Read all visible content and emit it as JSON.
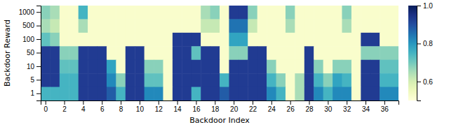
{
  "chart_data": {
    "type": "heatmap",
    "xlabel": "Backdoor Index",
    "ylabel": "Backdoor Reward",
    "categories": [
      "1000",
      "500",
      "100",
      "50",
      "10",
      "5",
      "1"
    ],
    "x": [
      0,
      1,
      2,
      3,
      4,
      5,
      6,
      7,
      8,
      9,
      10,
      11,
      12,
      13,
      14,
      15,
      16,
      17,
      18,
      19,
      20,
      21,
      22,
      23,
      24,
      25,
      26,
      27,
      28,
      29,
      30,
      31,
      32,
      33,
      34,
      35,
      36,
      37
    ],
    "xlim": [
      -0.5,
      37.5
    ],
    "xticks": [
      0,
      2,
      4,
      6,
      8,
      10,
      12,
      14,
      16,
      18,
      20,
      22,
      24,
      26,
      28,
      30,
      32,
      34,
      36
    ],
    "color": "YlGnBu",
    "color_range": [
      0.5,
      1.0
    ],
    "color_ticks": [
      0.6,
      0.8,
      {
        "value": 1.0,
        "label": "1.0"
      }
    ],
    "values": [
      [
        0.68,
        0.65,
        0.52,
        0.52,
        0.75,
        0.52,
        0.52,
        0.52,
        0.52,
        0.52,
        0.52,
        0.52,
        0.52,
        0.52,
        0.52,
        0.52,
        0.52,
        0.65,
        0.68,
        0.52,
        0.93,
        0.93,
        0.68,
        0.52,
        0.52,
        0.52,
        0.68,
        0.52,
        0.52,
        0.52,
        0.52,
        0.52,
        0.68,
        0.52,
        0.52,
        0.52,
        0.52,
        0.52
      ],
      [
        0.65,
        0.62,
        0.52,
        0.52,
        0.65,
        0.52,
        0.52,
        0.52,
        0.52,
        0.52,
        0.52,
        0.52,
        0.52,
        0.52,
        0.52,
        0.52,
        0.52,
        0.62,
        0.62,
        0.52,
        0.85,
        0.85,
        0.62,
        0.52,
        0.52,
        0.52,
        0.65,
        0.52,
        0.52,
        0.52,
        0.52,
        0.52,
        0.65,
        0.52,
        0.52,
        0.52,
        0.52,
        0.52
      ],
      [
        0.72,
        0.68,
        0.52,
        0.52,
        0.52,
        0.52,
        0.52,
        0.52,
        0.52,
        0.52,
        0.52,
        0.52,
        0.52,
        0.52,
        0.93,
        0.93,
        0.93,
        0.52,
        0.52,
        0.52,
        0.78,
        0.78,
        0.52,
        0.52,
        0.52,
        0.52,
        0.52,
        0.52,
        0.52,
        0.52,
        0.52,
        0.52,
        0.52,
        0.52,
        0.93,
        0.93,
        0.52,
        0.52
      ],
      [
        0.93,
        0.93,
        0.68,
        0.68,
        0.93,
        0.93,
        0.93,
        0.52,
        0.52,
        0.93,
        0.93,
        0.52,
        0.52,
        0.52,
        0.93,
        0.93,
        0.72,
        0.93,
        0.93,
        0.52,
        0.68,
        0.68,
        0.93,
        0.93,
        0.52,
        0.52,
        0.52,
        0.52,
        0.93,
        0.52,
        0.52,
        0.52,
        0.52,
        0.52,
        0.68,
        0.68,
        0.68,
        0.68
      ],
      [
        0.93,
        0.93,
        0.72,
        0.72,
        0.93,
        0.93,
        0.93,
        0.78,
        0.52,
        0.93,
        0.93,
        0.68,
        0.68,
        0.52,
        0.93,
        0.93,
        0.93,
        0.93,
        0.93,
        0.52,
        0.93,
        0.93,
        0.93,
        0.93,
        0.68,
        0.52,
        0.52,
        0.52,
        0.93,
        0.68,
        0.52,
        0.68,
        0.68,
        0.52,
        0.93,
        0.93,
        0.72,
        0.72
      ],
      [
        0.93,
        0.93,
        0.75,
        0.75,
        0.93,
        0.93,
        0.93,
        0.82,
        0.68,
        0.93,
        0.93,
        0.72,
        0.72,
        0.52,
        0.93,
        0.93,
        0.93,
        0.93,
        0.93,
        0.75,
        0.93,
        0.93,
        0.93,
        0.93,
        0.75,
        0.68,
        0.52,
        0.65,
        0.93,
        0.75,
        0.68,
        0.78,
        0.75,
        0.52,
        0.93,
        0.93,
        0.75,
        0.75
      ],
      [
        0.75,
        0.75,
        0.75,
        0.75,
        0.93,
        0.93,
        0.93,
        0.88,
        0.75,
        0.93,
        0.93,
        0.82,
        0.82,
        0.52,
        0.93,
        0.93,
        0.75,
        0.93,
        0.93,
        0.88,
        0.93,
        0.93,
        0.93,
        0.93,
        0.82,
        0.75,
        0.52,
        0.65,
        0.93,
        0.82,
        0.75,
        0.82,
        0.82,
        0.52,
        0.93,
        0.93,
        0.82,
        0.82
      ]
    ]
  }
}
